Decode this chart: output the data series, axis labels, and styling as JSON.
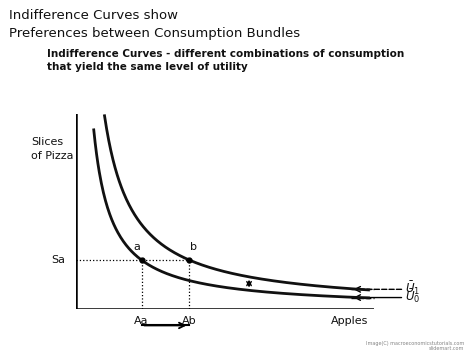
{
  "title_line1": "Indifference Curves show",
  "title_line2": "Preferences between Consumption Bundles",
  "subtitle_line1": "Indifference Curves - different combinations of consumption",
  "subtitle_line2": "that yield the same level of utility",
  "ylabel_line1": "Slices",
  "ylabel_line2": "of Pizza",
  "xlabel": "Apples",
  "label_Sa": "Sa",
  "label_Aa": "Aa",
  "label_Ab": "Ab",
  "label_a": "a",
  "label_b": "b",
  "k0": 5.5,
  "k1": 9.5,
  "Aa_val": 2.2,
  "bg_color": "#ffffff",
  "curve_color": "#111111",
  "text_color": "#111111",
  "title_fontsize": 9.5,
  "subtitle_fontsize": 7.5,
  "axis_label_fontsize": 8,
  "tick_label_fontsize": 8,
  "annotation_fontsize": 8,
  "watermark": "Image(C) macroeconomicstutorials.com\nslidemart.com"
}
